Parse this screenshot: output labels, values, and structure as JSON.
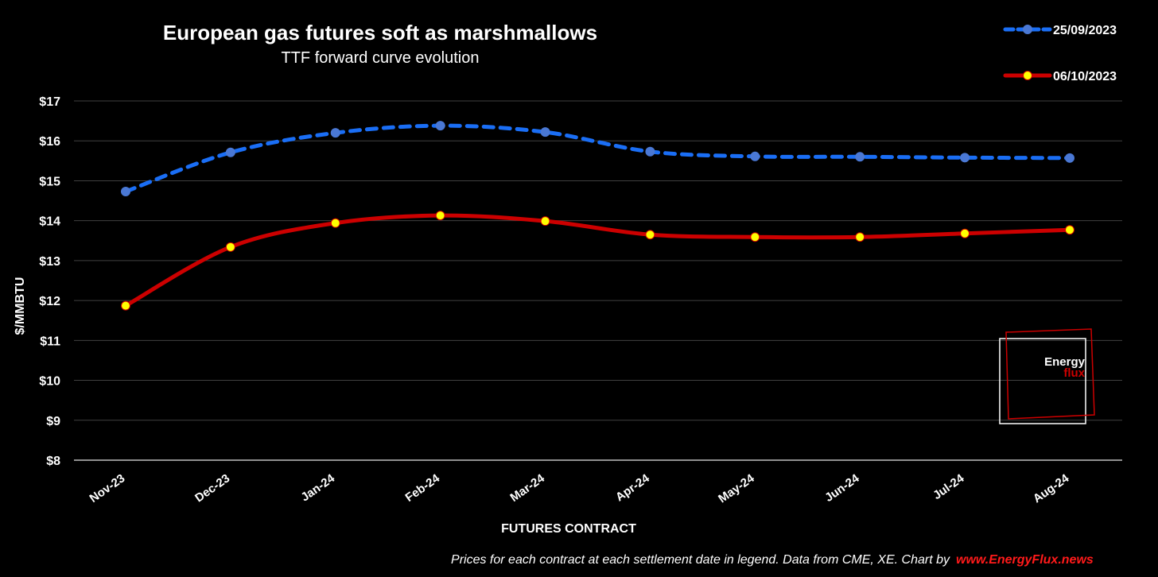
{
  "chart_data": {
    "type": "line",
    "title": "European gas futures soft as marshmallows",
    "subtitle": "TTF forward curve evolution",
    "xlabel": "FUTURES CONTRACT",
    "ylabel": "$/MMBTU",
    "categories": [
      "Nov-23",
      "Dec-23",
      "Jan-24",
      "Feb-24",
      "Mar-24",
      "Apr-24",
      "May-24",
      "Jun-24",
      "Jul-24",
      "Aug-24"
    ],
    "y_ticks": [
      "$8",
      "$9",
      "$10",
      "$11",
      "$12",
      "$13",
      "$14",
      "$15",
      "$16",
      "$17"
    ],
    "ylim": [
      8,
      17
    ],
    "grid": true,
    "legend_position": "top-right",
    "series": [
      {
        "name": "25/09/2023",
        "values": [
          14.73,
          15.71,
          16.2,
          16.38,
          16.22,
          15.73,
          15.61,
          15.6,
          15.58,
          15.57
        ],
        "line_color": "#1a6ef5",
        "marker_color": "#4a78d4",
        "line_style": "dashed"
      },
      {
        "name": "06/10/2023",
        "values": [
          11.87,
          13.34,
          13.94,
          14.13,
          13.99,
          13.65,
          13.59,
          13.59,
          13.68,
          13.77
        ],
        "line_color": "#cc0000",
        "marker_color": "#ffff00",
        "line_style": "solid"
      }
    ]
  },
  "footer": {
    "note": "Prices for each contract at each settlement date in legend. Data from CME, XE. Chart by",
    "link": "www.EnergyFlux.news",
    "link_color": "#ff1a1a"
  },
  "logo": {
    "word1": "Energy",
    "word2": "flux",
    "accent": "#cc0000"
  },
  "colors": {
    "background": "#000000",
    "grid": "#404040",
    "axis": "#bfbfbf"
  }
}
